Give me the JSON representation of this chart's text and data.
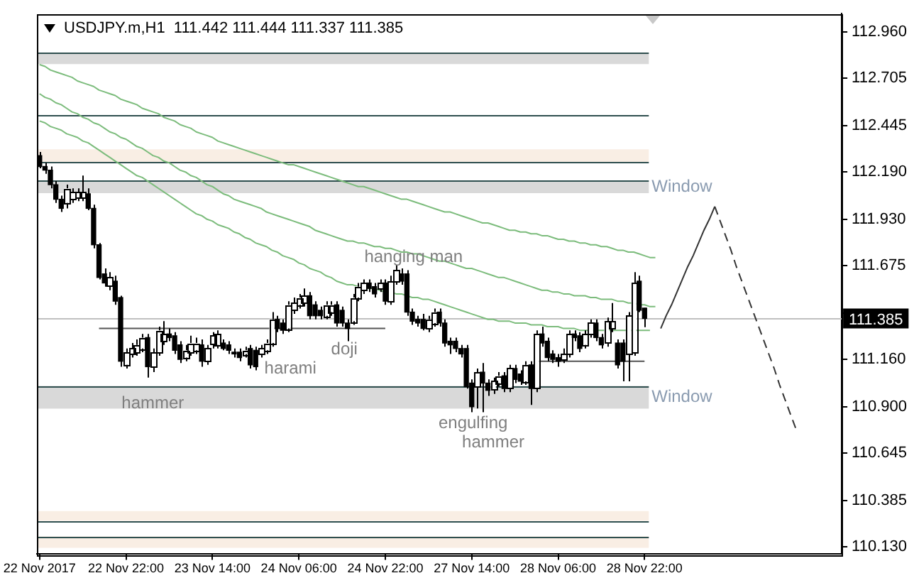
{
  "chart_data": {
    "type": "candlestick",
    "title": "USDJPY.m,H1  111.442 111.444 111.337 111.385",
    "categories": [
      "22 Nov 2017",
      null,
      null,
      null,
      null,
      null,
      null,
      null,
      null,
      null,
      null,
      null,
      null,
      null,
      null,
      null,
      "22 Nov 22:00",
      null,
      null,
      null,
      null,
      null,
      null,
      null,
      null,
      null,
      null,
      null,
      null,
      null,
      null,
      null,
      "23 Nov 14:00",
      null,
      null,
      null,
      null,
      null,
      null,
      null,
      null,
      null,
      null,
      null,
      null,
      null,
      null,
      null,
      "24 Nov 06:00",
      null,
      null,
      null,
      null,
      null,
      null,
      null,
      null,
      null,
      null,
      null,
      null,
      null,
      null,
      null,
      "24 Nov 22:00",
      null,
      null,
      null,
      null,
      null,
      null,
      null,
      null,
      null,
      null,
      null,
      null,
      null,
      null,
      null,
      "27 Nov 14:00",
      null,
      null,
      null,
      null,
      null,
      null,
      null,
      null,
      null,
      null,
      null,
      null,
      null,
      null,
      null,
      "28 Nov 06:00",
      null,
      null,
      null,
      null,
      null,
      null,
      null,
      null,
      null,
      null,
      null,
      null,
      null,
      null,
      null,
      "28 Nov 22:00",
      null,
      null,
      null,
      null,
      null,
      null,
      null,
      null,
      null,
      null,
      null,
      null,
      null,
      null,
      null,
      null,
      null,
      null,
      null,
      null,
      null,
      null,
      null,
      null,
      null,
      null,
      null,
      null,
      null,
      null,
      null,
      null,
      null,
      null,
      null,
      null
    ],
    "ohlc": [
      [
        112.28,
        112.3,
        112.21,
        112.22
      ],
      [
        112.22,
        112.24,
        112.18,
        112.2
      ],
      [
        112.2,
        112.22,
        112.1,
        112.12
      ],
      [
        112.12,
        112.14,
        112.02,
        112.04
      ],
      [
        112.04,
        112.06,
        111.97,
        111.99
      ],
      [
        112.02,
        112.12,
        111.99,
        112.1
      ],
      [
        112.04,
        112.1,
        112.02,
        112.08
      ],
      [
        112.05,
        112.1,
        112.03,
        112.08
      ],
      [
        112.05,
        112.17,
        112.03,
        112.08
      ],
      [
        112.07,
        112.1,
        111.98,
        111.99
      ],
      [
        111.99,
        112.01,
        111.77,
        111.79
      ],
      [
        111.79,
        111.8,
        111.6,
        111.61
      ],
      [
        111.63,
        111.66,
        111.56,
        111.58
      ],
      [
        111.56,
        111.64,
        111.54,
        111.61
      ],
      [
        111.59,
        111.62,
        111.46,
        111.48
      ],
      [
        111.5,
        111.51,
        111.12,
        111.15
      ],
      [
        111.13,
        111.22,
        111.11,
        111.2
      ],
      [
        111.19,
        111.25,
        111.17,
        111.22
      ],
      [
        111.2,
        111.27,
        111.18,
        111.24
      ],
      [
        111.22,
        111.3,
        111.2,
        111.28
      ],
      [
        111.28,
        111.3,
        111.06,
        111.12
      ],
      [
        111.12,
        111.22,
        111.09,
        111.2
      ],
      [
        111.2,
        111.34,
        111.18,
        111.32
      ],
      [
        111.26,
        111.37,
        111.24,
        111.3
      ],
      [
        111.3,
        111.33,
        111.26,
        111.28
      ],
      [
        111.29,
        111.31,
        111.19,
        111.21
      ],
      [
        111.24,
        111.26,
        111.14,
        111.16
      ],
      [
        111.17,
        111.24,
        111.15,
        111.21
      ],
      [
        111.2,
        111.29,
        111.18,
        111.25
      ],
      [
        111.21,
        111.28,
        111.19,
        111.25
      ],
      [
        111.24,
        111.27,
        111.12,
        111.15
      ],
      [
        111.15,
        111.24,
        111.13,
        111.22
      ],
      [
        111.24,
        111.31,
        111.22,
        111.29
      ],
      [
        111.24,
        111.32,
        111.22,
        111.3
      ],
      [
        111.25,
        111.27,
        111.21,
        111.22
      ],
      [
        111.24,
        111.26,
        111.19,
        111.21
      ],
      [
        111.2,
        111.22,
        111.17,
        111.19
      ],
      [
        111.2,
        111.22,
        111.15,
        111.17
      ],
      [
        111.19,
        111.23,
        111.17,
        111.21
      ],
      [
        111.22,
        111.24,
        111.11,
        111.13
      ],
      [
        111.21,
        111.23,
        111.1,
        111.12
      ],
      [
        111.19,
        111.24,
        111.17,
        111.22
      ],
      [
        111.21,
        111.27,
        111.19,
        111.25
      ],
      [
        111.25,
        111.42,
        111.23,
        111.38
      ],
      [
        111.38,
        111.4,
        111.31,
        111.33
      ],
      [
        111.36,
        111.38,
        111.3,
        111.32
      ],
      [
        111.33,
        111.48,
        111.31,
        111.46
      ],
      [
        111.43,
        111.5,
        111.41,
        111.47
      ],
      [
        111.46,
        111.52,
        111.44,
        111.5
      ],
      [
        111.47,
        111.55,
        111.45,
        111.51
      ],
      [
        111.51,
        111.53,
        111.38,
        111.4
      ],
      [
        111.46,
        111.48,
        111.38,
        111.4
      ],
      [
        111.43,
        111.45,
        111.38,
        111.4
      ],
      [
        111.4,
        111.48,
        111.38,
        111.46
      ],
      [
        111.42,
        111.48,
        111.4,
        111.46
      ],
      [
        111.46,
        111.48,
        111.34,
        111.36
      ],
      [
        111.43,
        111.45,
        111.34,
        111.36
      ],
      [
        111.36,
        111.38,
        111.26,
        111.33
      ],
      [
        111.37,
        111.52,
        111.35,
        111.5
      ],
      [
        111.5,
        111.58,
        111.48,
        111.56
      ],
      [
        111.54,
        111.6,
        111.52,
        111.58
      ],
      [
        111.58,
        111.6,
        111.53,
        111.55
      ],
      [
        111.56,
        111.58,
        111.5,
        111.52
      ],
      [
        111.55,
        111.6,
        111.53,
        111.58
      ],
      [
        111.58,
        111.6,
        111.46,
        111.48
      ],
      [
        111.48,
        111.62,
        111.46,
        111.59
      ],
      [
        111.59,
        111.68,
        111.57,
        111.65
      ],
      [
        111.63,
        111.66,
        111.57,
        111.59
      ],
      [
        111.63,
        111.65,
        111.4,
        111.42
      ],
      [
        111.42,
        111.44,
        111.35,
        111.37
      ],
      [
        111.38,
        111.4,
        111.34,
        111.36
      ],
      [
        111.38,
        111.41,
        111.32,
        111.33
      ],
      [
        111.33,
        111.4,
        111.31,
        111.38
      ],
      [
        111.36,
        111.44,
        111.34,
        111.42
      ],
      [
        111.42,
        111.44,
        111.34,
        111.36
      ],
      [
        111.36,
        111.38,
        111.23,
        111.25
      ],
      [
        111.26,
        111.28,
        111.19,
        111.24
      ],
      [
        111.26,
        111.28,
        111.2,
        111.22
      ],
      [
        111.22,
        111.24,
        111.17,
        111.19
      ],
      [
        111.22,
        111.24,
        111.0,
        111.01
      ],
      [
        111.03,
        111.05,
        110.87,
        110.9
      ],
      [
        111.01,
        111.11,
        110.89,
        111.09
      ],
      [
        111.09,
        111.14,
        110.87,
        111.03
      ],
      [
        111.03,
        111.05,
        110.96,
        110.99
      ],
      [
        110.99,
        111.06,
        110.97,
        111.04
      ],
      [
        111.03,
        111.09,
        111.01,
        111.07
      ],
      [
        111.07,
        111.09,
        110.98,
        111.0
      ],
      [
        111.0,
        111.13,
        110.98,
        111.11
      ],
      [
        111.11,
        111.13,
        111.03,
        111.05
      ],
      [
        111.08,
        111.1,
        111.02,
        111.04
      ],
      [
        111.04,
        111.15,
        111.02,
        111.13
      ],
      [
        111.13,
        111.15,
        110.91,
        111.0
      ],
      [
        111.0,
        111.32,
        110.98,
        111.3
      ],
      [
        111.3,
        111.34,
        111.23,
        111.25
      ],
      [
        111.26,
        111.28,
        111.15,
        111.17
      ],
      [
        111.19,
        111.21,
        111.14,
        111.16
      ],
      [
        111.17,
        111.19,
        111.12,
        111.15
      ],
      [
        111.16,
        111.22,
        111.14,
        111.19
      ],
      [
        111.19,
        111.32,
        111.17,
        111.3
      ],
      [
        111.3,
        111.32,
        111.26,
        111.28
      ],
      [
        111.29,
        111.31,
        111.2,
        111.22
      ],
      [
        111.24,
        111.32,
        111.22,
        111.3
      ],
      [
        111.3,
        111.38,
        111.28,
        111.36
      ],
      [
        111.36,
        111.38,
        111.26,
        111.28
      ],
      [
        111.28,
        111.3,
        111.22,
        111.24
      ],
      [
        111.25,
        111.39,
        111.23,
        111.37
      ],
      [
        111.33,
        111.47,
        111.31,
        111.37
      ],
      [
        111.25,
        111.27,
        111.11,
        111.13
      ],
      [
        111.25,
        111.27,
        111.04,
        111.15
      ],
      [
        111.19,
        111.42,
        111.04,
        111.4
      ],
      [
        111.2,
        111.64,
        111.18,
        111.58
      ],
      [
        111.59,
        111.62,
        111.42,
        111.43
      ],
      [
        111.442,
        111.444,
        111.337,
        111.385
      ],
      null,
      null,
      null,
      null,
      null,
      null,
      null,
      null,
      null,
      null,
      null,
      null,
      null,
      null,
      null,
      null,
      null,
      null,
      null,
      null,
      null,
      null,
      null,
      null,
      null,
      null,
      null,
      null,
      null,
      null,
      null,
      null,
      null,
      null,
      null,
      null
    ],
    "series": [
      {
        "type": "line",
        "color": "#7cbc7c",
        "values": [
          112.78,
          112.77,
          112.75,
          112.74,
          112.73,
          112.72,
          112.71,
          112.69,
          112.68,
          112.67,
          112.66,
          112.64,
          112.63,
          112.62,
          112.61,
          112.59,
          112.58,
          112.57,
          112.56,
          112.54,
          112.53,
          112.52,
          112.51,
          112.49,
          112.48,
          112.47,
          112.45,
          112.44,
          112.43,
          112.41,
          112.4,
          112.39,
          112.38,
          112.36,
          112.35,
          112.34,
          112.33,
          112.32,
          112.31,
          112.3,
          112.29,
          112.28,
          112.27,
          112.26,
          112.25,
          112.24,
          112.23,
          112.23,
          112.22,
          112.21,
          112.2,
          112.19,
          112.18,
          112.17,
          112.16,
          112.15,
          112.14,
          112.13,
          112.12,
          112.11,
          112.11,
          112.1,
          112.09,
          112.08,
          112.07,
          112.06,
          112.05,
          112.04,
          112.04,
          112.03,
          112.02,
          112.01,
          112.0,
          111.99,
          111.98,
          111.97,
          111.97,
          111.96,
          111.95,
          111.94,
          111.93,
          111.92,
          111.91,
          111.91,
          111.9,
          111.89,
          111.88,
          111.87,
          111.87,
          111.86,
          111.86,
          111.85,
          111.85,
          111.84,
          111.84,
          111.83,
          111.82,
          111.82,
          111.81,
          111.81,
          111.8,
          111.8,
          111.79,
          111.79,
          111.78,
          111.78,
          111.77,
          111.76,
          111.76,
          111.75,
          111.75,
          111.74,
          111.73,
          111.72,
          111.72,
          null,
          null,
          null,
          null,
          null,
          null,
          null,
          null,
          null,
          null,
          null,
          null,
          null,
          null,
          null,
          null,
          null,
          null,
          null,
          null,
          null,
          null,
          null,
          null,
          null,
          null,
          null,
          null,
          null,
          null,
          null,
          null,
          null,
          null
        ]
      },
      {
        "type": "line",
        "color": "#7cbc7c",
        "values": [
          112.62,
          112.6,
          112.59,
          112.57,
          112.56,
          112.54,
          112.52,
          112.51,
          112.49,
          112.48,
          112.46,
          112.45,
          112.43,
          112.41,
          112.4,
          112.38,
          112.37,
          112.35,
          112.33,
          112.32,
          112.3,
          112.28,
          112.27,
          112.25,
          112.24,
          112.22,
          112.2,
          112.19,
          112.17,
          112.16,
          112.14,
          112.12,
          112.11,
          112.09,
          112.07,
          112.06,
          112.04,
          112.03,
          112.02,
          112.01,
          112.0,
          111.99,
          111.97,
          111.96,
          111.95,
          111.94,
          111.93,
          111.92,
          111.91,
          111.9,
          111.89,
          111.87,
          111.86,
          111.85,
          111.84,
          111.83,
          111.82,
          111.81,
          111.81,
          111.8,
          111.8,
          111.79,
          111.78,
          111.78,
          111.77,
          111.77,
          111.76,
          111.75,
          111.75,
          111.74,
          111.74,
          111.73,
          111.72,
          111.71,
          111.7,
          111.7,
          111.69,
          111.68,
          111.67,
          111.66,
          111.66,
          111.65,
          111.64,
          111.63,
          111.62,
          111.61,
          111.61,
          111.6,
          111.59,
          111.58,
          111.57,
          111.56,
          111.55,
          111.54,
          111.54,
          111.53,
          111.53,
          111.52,
          111.52,
          111.51,
          111.51,
          111.51,
          111.5,
          111.5,
          111.49,
          111.49,
          111.49,
          111.48,
          111.48,
          111.47,
          111.47,
          111.46,
          111.46,
          111.45,
          111.45,
          null,
          null,
          null,
          null,
          null,
          null,
          null,
          null,
          null,
          null,
          null,
          null,
          null,
          null,
          null,
          null,
          null,
          null,
          null,
          null,
          null,
          null,
          null,
          null,
          null,
          null,
          null,
          null,
          null,
          null,
          null,
          null,
          null,
          null
        ]
      },
      {
        "type": "line",
        "color": "#7cbc7c",
        "values": [
          112.47,
          112.46,
          112.44,
          112.43,
          112.42,
          112.4,
          112.39,
          112.38,
          112.36,
          112.35,
          112.33,
          112.31,
          112.29,
          112.27,
          112.25,
          112.23,
          112.21,
          112.19,
          112.17,
          112.16,
          112.14,
          112.12,
          112.1,
          112.08,
          112.06,
          112.04,
          112.02,
          112.0,
          111.98,
          111.96,
          111.95,
          111.93,
          111.92,
          111.9,
          111.89,
          111.88,
          111.86,
          111.85,
          111.83,
          111.82,
          111.8,
          111.79,
          111.78,
          111.76,
          111.75,
          111.73,
          111.72,
          111.71,
          111.69,
          111.68,
          111.66,
          111.65,
          111.64,
          111.62,
          111.61,
          111.59,
          111.58,
          111.57,
          111.57,
          111.56,
          111.56,
          111.55,
          111.55,
          111.54,
          111.53,
          111.53,
          111.52,
          111.52,
          111.51,
          111.5,
          111.5,
          111.49,
          111.49,
          111.48,
          111.47,
          111.46,
          111.45,
          111.44,
          111.43,
          111.42,
          111.41,
          111.4,
          111.39,
          111.38,
          111.38,
          111.37,
          111.37,
          111.37,
          111.36,
          111.36,
          111.36,
          111.35,
          111.35,
          111.35,
          111.34,
          111.34,
          111.34,
          111.33,
          111.33,
          111.33,
          111.32,
          111.32,
          111.32,
          111.32,
          111.32,
          111.32,
          111.32,
          111.32,
          111.32,
          111.32,
          111.32,
          111.32,
          111.32,
          111.32,
          null,
          null,
          null,
          null,
          null,
          null,
          null,
          null,
          null,
          null,
          null,
          null,
          null,
          null,
          null,
          null,
          null,
          null,
          null,
          null,
          null,
          null,
          null,
          null,
          null,
          null,
          null,
          null,
          null,
          null,
          null,
          null,
          null,
          null,
          null
        ]
      },
      {
        "type": "line",
        "color": "#555555",
        "values": [
          null,
          null,
          null,
          null,
          null,
          null,
          null,
          null,
          null,
          null,
          null,
          111.33,
          111.33,
          111.33,
          111.33,
          111.33,
          111.33,
          111.33,
          111.33,
          111.33,
          111.33,
          111.33,
          111.33,
          111.33,
          111.33,
          111.33,
          111.33,
          111.33,
          111.33,
          111.33,
          111.33,
          111.33,
          111.33,
          111.33,
          111.33,
          111.33,
          111.33,
          111.33,
          111.33,
          111.33,
          111.33,
          111.33,
          111.33,
          111.33,
          111.33,
          111.33,
          111.33,
          111.33,
          111.33,
          111.33,
          111.33,
          111.33,
          111.33,
          111.33,
          111.33,
          111.33,
          111.33,
          111.33,
          111.33,
          111.33,
          111.33,
          111.33,
          111.33,
          111.33,
          111.33,
          null,
          null,
          null,
          null,
          null,
          null,
          null,
          null,
          null,
          null,
          null,
          null,
          null,
          null,
          null,
          null,
          null,
          null,
          null,
          null,
          null,
          null,
          null,
          null,
          null,
          null,
          null,
          null,
          null,
          null,
          null,
          null,
          null,
          null,
          null,
          null,
          null,
          null,
          null,
          null,
          null,
          null,
          null,
          null,
          null,
          null,
          null,
          null,
          null,
          null,
          null,
          null,
          null,
          null,
          null,
          null,
          null,
          null,
          null,
          null,
          null,
          null,
          null,
          null,
          null,
          null,
          null,
          null,
          null,
          null,
          null,
          null,
          null,
          null,
          null,
          null,
          null,
          null,
          null,
          null,
          null,
          null,
          null,
          null
        ]
      },
      {
        "type": "line",
        "color": "#555555",
        "values": [
          null,
          null,
          null,
          null,
          null,
          null,
          null,
          null,
          null,
          null,
          null,
          null,
          null,
          null,
          null,
          null,
          null,
          null,
          null,
          null,
          null,
          null,
          null,
          null,
          null,
          null,
          null,
          null,
          null,
          null,
          null,
          null,
          null,
          null,
          null,
          null,
          null,
          null,
          null,
          null,
          null,
          null,
          null,
          null,
          null,
          null,
          null,
          null,
          null,
          null,
          null,
          null,
          null,
          null,
          null,
          null,
          null,
          null,
          null,
          null,
          null,
          null,
          null,
          null,
          null,
          null,
          null,
          null,
          null,
          null,
          null,
          null,
          null,
          null,
          null,
          null,
          null,
          null,
          null,
          null,
          null,
          null,
          null,
          null,
          null,
          null,
          null,
          null,
          null,
          null,
          null,
          null,
          111.15,
          111.15,
          111.15,
          111.15,
          111.15,
          111.15,
          111.15,
          111.15,
          111.15,
          111.15,
          111.15,
          111.15,
          111.15,
          111.15,
          111.15,
          111.15,
          111.15,
          111.15,
          111.15,
          111.15,
          111.15,
          null,
          null,
          null,
          null,
          null,
          null,
          null,
          null,
          null,
          null,
          null,
          null,
          null,
          null,
          null,
          null,
          null,
          null,
          null,
          null,
          null,
          null,
          null,
          null,
          null,
          null,
          null,
          null,
          null,
          null,
          null,
          null,
          null,
          null,
          null,
          null
        ]
      },
      {
        "type": "line",
        "color": "#333333",
        "values": [
          null,
          null,
          null,
          null,
          null,
          null,
          null,
          null,
          null,
          null,
          null,
          null,
          null,
          null,
          null,
          null,
          null,
          null,
          null,
          null,
          null,
          null,
          null,
          null,
          null,
          null,
          null,
          null,
          null,
          null,
          null,
          null,
          null,
          null,
          null,
          null,
          null,
          null,
          null,
          null,
          null,
          null,
          null,
          null,
          null,
          null,
          null,
          null,
          null,
          null,
          null,
          null,
          null,
          null,
          null,
          null,
          null,
          null,
          null,
          null,
          null,
          null,
          null,
          null,
          null,
          null,
          null,
          null,
          null,
          null,
          null,
          null,
          null,
          null,
          null,
          null,
          null,
          null,
          null,
          null,
          null,
          null,
          null,
          null,
          null,
          null,
          null,
          null,
          null,
          null,
          null,
          null,
          null,
          null,
          null,
          null,
          null,
          null,
          null,
          null,
          null,
          null,
          null,
          null,
          null,
          null,
          null,
          null,
          null,
          null,
          null,
          null,
          null,
          null,
          null,
          111.33,
          111.4,
          111.46,
          111.53,
          111.6,
          111.67,
          111.73,
          111.8,
          111.87,
          111.93,
          112.0,
          null,
          null,
          null,
          null,
          null,
          null,
          null,
          null,
          null,
          null,
          null,
          null,
          null,
          null,
          null,
          null,
          null,
          null,
          null,
          null,
          null,
          null,
          null
        ]
      },
      {
        "type": "line",
        "color": "#333333",
        "line_style": "dashed",
        "values": [
          null,
          null,
          null,
          null,
          null,
          null,
          null,
          null,
          null,
          null,
          null,
          null,
          null,
          null,
          null,
          null,
          null,
          null,
          null,
          null,
          null,
          null,
          null,
          null,
          null,
          null,
          null,
          null,
          null,
          null,
          null,
          null,
          null,
          null,
          null,
          null,
          null,
          null,
          null,
          null,
          null,
          null,
          null,
          null,
          null,
          null,
          null,
          null,
          null,
          null,
          null,
          null,
          null,
          null,
          null,
          null,
          null,
          null,
          null,
          null,
          null,
          null,
          null,
          null,
          null,
          null,
          null,
          null,
          null,
          null,
          null,
          null,
          null,
          null,
          null,
          null,
          null,
          null,
          null,
          null,
          null,
          null,
          null,
          null,
          null,
          null,
          null,
          null,
          null,
          null,
          null,
          null,
          null,
          null,
          null,
          null,
          null,
          null,
          null,
          null,
          null,
          null,
          null,
          null,
          null,
          null,
          null,
          null,
          null,
          null,
          null,
          null,
          null,
          null,
          null,
          null,
          null,
          null,
          null,
          null,
          null,
          null,
          null,
          null,
          null,
          112.0,
          111.92,
          111.84,
          111.76,
          111.67,
          111.59,
          111.51,
          111.43,
          111.35,
          111.27,
          111.19,
          111.11,
          111.02,
          110.94,
          110.86,
          110.78,
          null,
          null,
          null,
          null,
          null,
          null,
          null,
          null
        ]
      }
    ],
    "ylim": [
      110.09,
      113.06
    ],
    "yticks": [
      {
        "value": 112.96,
        "label": "112.960"
      },
      112.705,
      112.445,
      {
        "value": 112.19,
        "label": "112.190"
      },
      {
        "value": 111.93,
        "label": "111.930"
      },
      111.675,
      {
        "value": 111.415,
        "label": null
      },
      {
        "value": 111.16,
        "label": "111.160"
      },
      {
        "value": 110.9,
        "label": "110.900"
      },
      110.645,
      110.385,
      {
        "value": 110.13,
        "label": "110.130"
      }
    ],
    "ref_lines": [
      {
        "axis": "y",
        "value": 112.845,
        "color": "#2f4f4f"
      },
      {
        "axis": "y",
        "value": 112.502,
        "color": "#2f4f4f"
      },
      {
        "axis": "y",
        "value": 112.245,
        "color": "#2f4f4f"
      },
      {
        "axis": "y",
        "value": 112.144,
        "color": "#2f4f4f"
      },
      {
        "axis": "y",
        "value": 111.014,
        "color": "#2f4f4f"
      },
      {
        "axis": "y",
        "value": 110.273,
        "color": "#2f4f4f"
      },
      {
        "axis": "y",
        "value": 110.188,
        "color": "#2f4f4f"
      },
      {
        "axis": "y",
        "value": 111.385,
        "label": "111.385",
        "color": "#c0c0c0"
      }
    ],
    "bands": [
      {
        "axis": "y",
        "from": 112.783,
        "to": 112.845,
        "color": "#d9d9d9"
      },
      {
        "axis": "y",
        "from": 112.245,
        "to": 112.315,
        "color": "#f9eee4"
      },
      {
        "axis": "y",
        "from": 112.074,
        "to": 112.144,
        "color": "#d9d9d9",
        "label": "Window"
      },
      {
        "axis": "y",
        "from": 110.889,
        "to": 111.014,
        "color": "#d9d9d9",
        "label": "Window"
      },
      {
        "axis": "y",
        "from": 110.273,
        "to": 110.327,
        "color": "#f9eee4"
      },
      {
        "axis": "y",
        "from": 110.125,
        "to": 110.188,
        "color": "#f9eee4"
      }
    ],
    "annotations": [
      "hanging man",
      "doji",
      "harami",
      "hammer",
      "engulfing",
      "hammer"
    ],
    "grid": false,
    "legend": false,
    "marker": "none"
  }
}
